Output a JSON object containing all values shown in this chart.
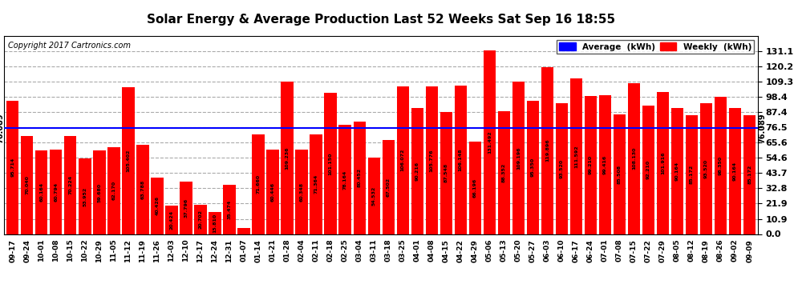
{
  "title": "Solar Energy & Average Production Last 52 Weeks Sat Sep 16 18:55",
  "copyright": "Copyright 2017 Cartronics.com",
  "average_value": 76.089,
  "bar_color": "#FF0000",
  "average_line_color": "#0000FF",
  "background_color": "#FFFFFF",
  "grid_color": "#AAAAAA",
  "ylim": [
    0.0,
    142.0
  ],
  "yticks": [
    0.0,
    10.9,
    21.9,
    32.8,
    43.7,
    54.6,
    65.6,
    76.5,
    87.4,
    98.4,
    109.3,
    120.2,
    131.1
  ],
  "categories": [
    "09-17",
    "09-24",
    "10-01",
    "10-08",
    "10-15",
    "10-22",
    "10-29",
    "11-05",
    "11-12",
    "11-19",
    "11-26",
    "12-03",
    "12-10",
    "12-17",
    "12-24",
    "12-31",
    "01-07",
    "01-14",
    "01-21",
    "01-28",
    "02-04",
    "02-11",
    "02-18",
    "02-25",
    "03-04",
    "03-11",
    "03-18",
    "03-25",
    "04-01",
    "04-08",
    "04-15",
    "04-22",
    "04-29",
    "05-06",
    "05-13",
    "05-20",
    "05-27",
    "06-03",
    "06-10",
    "06-17",
    "06-24",
    "07-01",
    "07-08",
    "07-15",
    "07-22",
    "07-29",
    "08-05",
    "08-12",
    "08-19",
    "08-26",
    "09-02",
    "09-09"
  ],
  "values": [
    95.714,
    70.04,
    60.164,
    60.794,
    70.224,
    53.952,
    59.68,
    62.17,
    105.402,
    63.788,
    40.426,
    20.424,
    37.796,
    20.702,
    15.81,
    35.474,
    4.312,
    71.66,
    60.446,
    109.236,
    60.348,
    71.364,
    101.15,
    78.164,
    80.452,
    54.532,
    67.502,
    106.072,
    90.216,
    105.776,
    87.548,
    106.148,
    66.196,
    131.492,
    88.352,
    109.196,
    95.35,
    119.896,
    93.52,
    111.592,
    99.21,
    99.416,
    85.508,
    108.13,
    92.21,
    101.916,
    90.164,
    85.172,
    93.52,
    98.35,
    90.164,
    85.172
  ],
  "legend_avg_text": "Average  (kWh)",
  "legend_weekly_text": "Weekly  (kWh)"
}
